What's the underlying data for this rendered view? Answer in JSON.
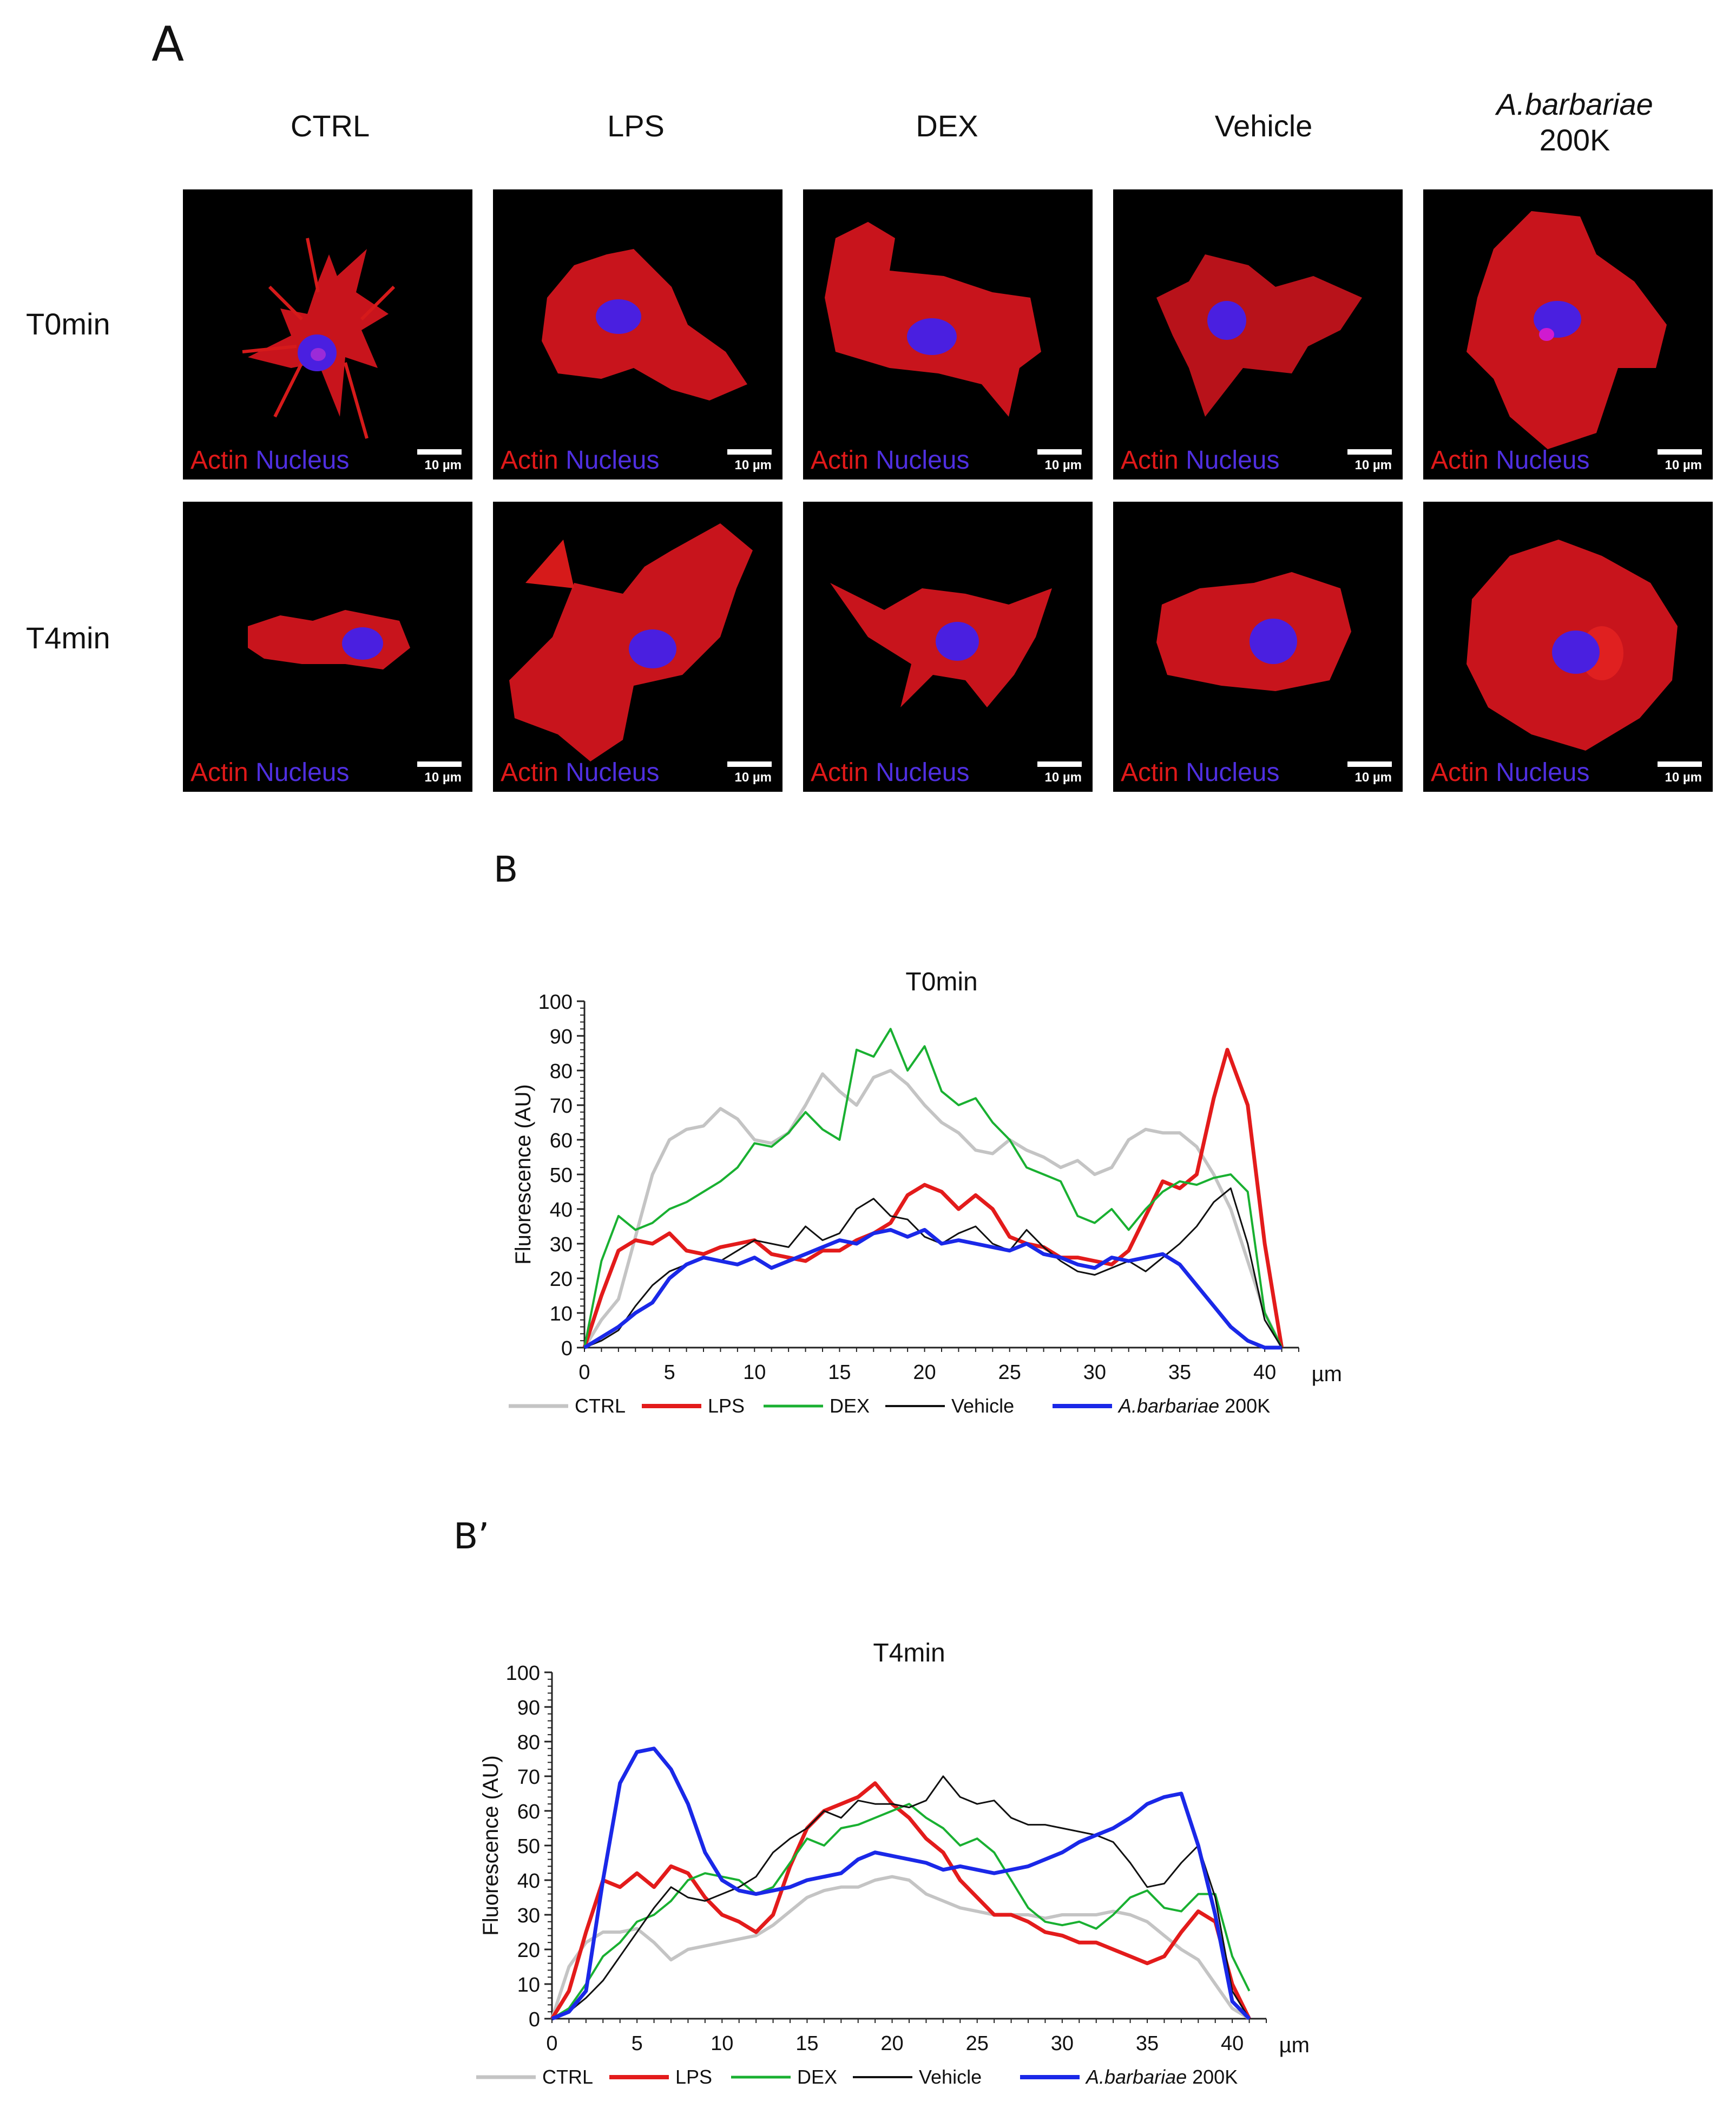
{
  "panel_labels": {
    "a": "A",
    "b": "B",
    "b_prime": "B’"
  },
  "columns": [
    {
      "line1": "CTRL",
      "line2": ""
    },
    {
      "line1": "LPS",
      "line2": ""
    },
    {
      "line1": "DEX",
      "line2": ""
    },
    {
      "line1": "Vehicle",
      "line2": ""
    },
    {
      "line1": "A.barbariae",
      "line2": "200K"
    }
  ],
  "rows": [
    "T0min",
    "T4min"
  ],
  "image_label": {
    "actin": "Actin",
    "nucleus": "Nucleus",
    "scale": "10 µm"
  },
  "colors": {
    "actin": "#e01919",
    "nucleus": "#4f2fe0",
    "ctrl": "#c4c4c4",
    "lps": "#e31b1b",
    "dex": "#19b031",
    "vehicle": "#111111",
    "abarbariae": "#1a28e8"
  },
  "chart_data": [
    {
      "type": "line",
      "title": "T0min",
      "xlabel": "µm",
      "ylabel": "Fluorescence (AU)",
      "xlim": [
        0,
        42
      ],
      "ylim": [
        0,
        100
      ],
      "xticks": [
        0,
        5,
        10,
        15,
        20,
        25,
        30,
        35,
        40
      ],
      "yticks": [
        0,
        10,
        20,
        30,
        40,
        50,
        60,
        70,
        80,
        90,
        100
      ],
      "series": [
        {
          "name": "CTRL",
          "color": "#c4c4c4",
          "width": 6,
          "x": [
            0,
            1,
            2,
            3,
            4,
            5,
            6,
            7,
            8,
            9,
            10,
            11,
            12,
            13,
            14,
            15,
            16,
            17,
            18,
            19,
            20,
            21,
            22,
            23,
            24,
            25,
            26,
            27,
            28,
            29,
            30,
            31,
            32,
            33,
            34,
            35,
            36,
            37,
            38,
            39,
            40,
            41
          ],
          "y": [
            0,
            8,
            14,
            32,
            50,
            60,
            63,
            64,
            69,
            66,
            60,
            59,
            62,
            70,
            79,
            74,
            70,
            78,
            80,
            76,
            70,
            65,
            62,
            57,
            56,
            60,
            57,
            55,
            52,
            54,
            50,
            52,
            60,
            63,
            62,
            62,
            58,
            50,
            40,
            25,
            10,
            0
          ]
        },
        {
          "name": "LPS",
          "color": "#e31b1b",
          "width": 7,
          "x": [
            0,
            1,
            2,
            3,
            4,
            5,
            6,
            7,
            8,
            9,
            10,
            11,
            12,
            13,
            14,
            15,
            16,
            17,
            18,
            19,
            20,
            21,
            22,
            23,
            24,
            25,
            26,
            27,
            28,
            29,
            30,
            31,
            32,
            33,
            34,
            35,
            36,
            37,
            37.8,
            39,
            40,
            41
          ],
          "y": [
            0,
            15,
            28,
            31,
            30,
            33,
            28,
            27,
            29,
            30,
            31,
            27,
            26,
            25,
            28,
            28,
            31,
            33,
            36,
            44,
            47,
            45,
            40,
            44,
            40,
            32,
            30,
            29,
            26,
            26,
            25,
            24,
            28,
            38,
            48,
            46,
            50,
            72,
            86,
            70,
            30,
            0
          ]
        },
        {
          "name": "DEX",
          "color": "#19b031",
          "width": 4,
          "x": [
            0,
            1,
            2,
            3,
            4,
            5,
            6,
            7,
            8,
            9,
            10,
            11,
            12,
            13,
            14,
            15,
            16,
            17,
            18,
            19,
            20,
            21,
            22,
            23,
            24,
            25,
            26,
            27,
            28,
            29,
            30,
            31,
            32,
            33,
            34,
            35,
            36,
            37,
            38,
            39,
            40,
            41
          ],
          "y": [
            0,
            25,
            38,
            34,
            36,
            40,
            42,
            45,
            48,
            52,
            59,
            58,
            62,
            68,
            63,
            60,
            86,
            84,
            92,
            80,
            87,
            74,
            70,
            72,
            65,
            60,
            52,
            50,
            48,
            38,
            36,
            40,
            34,
            40,
            45,
            48,
            47,
            49,
            50,
            45,
            10,
            0
          ]
        },
        {
          "name": "Vehicle",
          "color": "#111111",
          "width": 3,
          "x": [
            0,
            1,
            2,
            3,
            4,
            5,
            6,
            7,
            8,
            9,
            10,
            11,
            12,
            13,
            14,
            15,
            16,
            17,
            18,
            19,
            20,
            21,
            22,
            23,
            24,
            25,
            26,
            27,
            28,
            29,
            30,
            31,
            32,
            33,
            34,
            35,
            36,
            37,
            38,
            39,
            40,
            41
          ],
          "y": [
            0,
            2,
            5,
            12,
            18,
            22,
            24,
            26,
            25,
            28,
            31,
            30,
            29,
            35,
            31,
            33,
            40,
            43,
            38,
            37,
            32,
            30,
            33,
            35,
            30,
            28,
            34,
            29,
            25,
            22,
            21,
            23,
            25,
            22,
            26,
            30,
            35,
            42,
            46,
            30,
            8,
            0
          ]
        },
        {
          "name": "A.barbariae 200K",
          "color": "#1a28e8",
          "width": 7,
          "x": [
            0,
            1,
            2,
            3,
            4,
            5,
            6,
            7,
            8,
            9,
            10,
            11,
            12,
            13,
            14,
            15,
            16,
            17,
            18,
            19,
            20,
            21,
            22,
            23,
            24,
            25,
            26,
            27,
            28,
            29,
            30,
            31,
            32,
            33,
            34,
            35,
            36,
            37,
            38,
            39,
            40,
            41
          ],
          "y": [
            0,
            3,
            6,
            10,
            13,
            20,
            24,
            26,
            25,
            24,
            26,
            23,
            25,
            27,
            29,
            31,
            30,
            33,
            34,
            32,
            34,
            30,
            31,
            30,
            29,
            28,
            30,
            27,
            26,
            24,
            23,
            26,
            25,
            26,
            27,
            24,
            18,
            12,
            6,
            2,
            0,
            0
          ]
        }
      ],
      "legend": [
        "CTRL",
        "LPS",
        "DEX",
        "Vehicle",
        "A.barbariae 200K"
      ],
      "legend_position": "bottom"
    },
    {
      "type": "line",
      "title": "T4min",
      "xlabel": "µm",
      "ylabel": "Fluorescence (AU)",
      "xlim": [
        0,
        42
      ],
      "ylim": [
        0,
        100
      ],
      "xticks": [
        0,
        5,
        10,
        15,
        20,
        25,
        30,
        35,
        40
      ],
      "yticks": [
        0,
        10,
        20,
        30,
        40,
        50,
        60,
        70,
        80,
        90,
        100
      ],
      "series": [
        {
          "name": "CTRL",
          "color": "#c4c4c4",
          "width": 6,
          "x": [
            0,
            1,
            2,
            3,
            4,
            5,
            6,
            7,
            8,
            9,
            10,
            11,
            12,
            13,
            14,
            15,
            16,
            17,
            18,
            19,
            20,
            21,
            22,
            23,
            24,
            25,
            26,
            27,
            28,
            29,
            30,
            31,
            32,
            33,
            34,
            35,
            36,
            37,
            38,
            39,
            40,
            41
          ],
          "y": [
            0,
            15,
            22,
            25,
            25,
            26,
            22,
            17,
            20,
            21,
            22,
            23,
            24,
            27,
            31,
            35,
            37,
            38,
            38,
            40,
            41,
            40,
            36,
            34,
            32,
            31,
            30,
            30,
            30,
            29,
            30,
            30,
            30,
            31,
            30,
            28,
            24,
            20,
            17,
            10,
            3,
            0
          ]
        },
        {
          "name": "LPS",
          "color": "#e31b1b",
          "width": 7,
          "x": [
            0,
            1,
            2,
            3,
            4,
            5,
            6,
            7,
            8,
            9,
            10,
            11,
            12,
            13,
            14,
            15,
            16,
            17,
            18,
            19,
            20,
            21,
            22,
            23,
            24,
            25,
            26,
            27,
            28,
            29,
            30,
            31,
            32,
            33,
            34,
            35,
            36,
            37,
            38,
            39,
            40,
            41
          ],
          "y": [
            0,
            8,
            25,
            40,
            38,
            42,
            38,
            44,
            42,
            35,
            30,
            28,
            25,
            30,
            44,
            55,
            60,
            62,
            64,
            68,
            62,
            58,
            52,
            48,
            40,
            35,
            30,
            30,
            28,
            25,
            24,
            22,
            22,
            20,
            18,
            16,
            18,
            25,
            31,
            28,
            10,
            0
          ]
        },
        {
          "name": "DEX",
          "color": "#19b031",
          "width": 4,
          "x": [
            0,
            1,
            2,
            3,
            4,
            5,
            6,
            7,
            8,
            9,
            10,
            11,
            12,
            13,
            14,
            15,
            16,
            17,
            18,
            19,
            20,
            21,
            22,
            23,
            24,
            25,
            26,
            27,
            28,
            29,
            30,
            31,
            32,
            33,
            34,
            35,
            36,
            37,
            38,
            39,
            40,
            41
          ],
          "y": [
            0,
            3,
            10,
            18,
            22,
            28,
            30,
            34,
            40,
            42,
            41,
            40,
            36,
            38,
            45,
            52,
            50,
            55,
            56,
            58,
            60,
            62,
            58,
            55,
            50,
            52,
            48,
            40,
            32,
            28,
            27,
            28,
            26,
            30,
            35,
            37,
            32,
            31,
            36,
            36,
            18,
            8
          ]
        },
        {
          "name": "Vehicle",
          "color": "#111111",
          "width": 3,
          "x": [
            0,
            1,
            2,
            3,
            4,
            5,
            6,
            7,
            8,
            9,
            10,
            11,
            12,
            13,
            14,
            15,
            16,
            17,
            18,
            19,
            20,
            21,
            22,
            23,
            24,
            25,
            26,
            27,
            28,
            29,
            30,
            31,
            32,
            33,
            34,
            35,
            36,
            37,
            38,
            39,
            40,
            41
          ],
          "y": [
            0,
            2,
            6,
            11,
            18,
            25,
            32,
            38,
            35,
            34,
            36,
            38,
            41,
            48,
            52,
            55,
            60,
            58,
            63,
            62,
            62,
            61,
            63,
            70,
            64,
            62,
            63,
            58,
            56,
            56,
            55,
            54,
            53,
            51,
            45,
            38,
            39,
            45,
            50,
            35,
            8,
            0
          ]
        },
        {
          "name": "A.barbariae 200K",
          "color": "#1a28e8",
          "width": 7,
          "x": [
            0,
            1,
            2,
            3,
            4,
            5,
            6,
            7,
            8,
            9,
            10,
            11,
            12,
            13,
            14,
            15,
            16,
            17,
            18,
            19,
            20,
            21,
            22,
            23,
            24,
            25,
            26,
            27,
            28,
            29,
            30,
            31,
            32,
            33,
            34,
            35,
            36,
            37,
            38,
            39,
            40,
            41
          ],
          "y": [
            0,
            2,
            8,
            40,
            68,
            77,
            78,
            72,
            62,
            48,
            40,
            37,
            36,
            37,
            38,
            40,
            41,
            42,
            46,
            48,
            47,
            46,
            45,
            43,
            44,
            43,
            42,
            43,
            44,
            46,
            48,
            51,
            53,
            55,
            58,
            62,
            64,
            65,
            50,
            30,
            5,
            0
          ]
        }
      ],
      "legend": [
        "CTRL",
        "LPS",
        "DEX",
        "Vehicle",
        "A.barbariae 200K"
      ],
      "legend_position": "bottom"
    }
  ]
}
